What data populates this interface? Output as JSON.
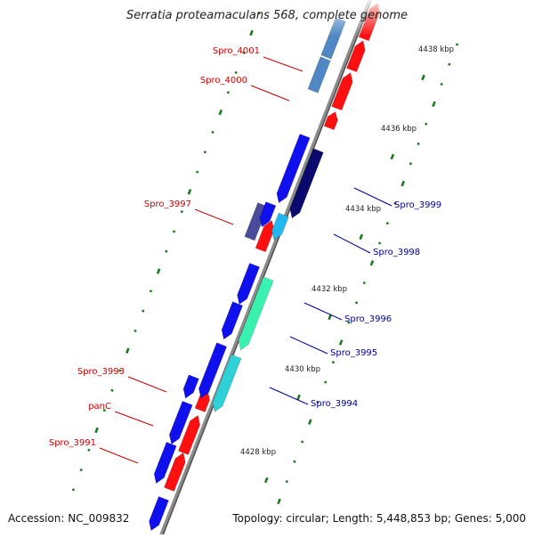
{
  "title": "Serratia proteamaculans 568, complete genome",
  "footer": {
    "accession": "Accession: NC_009832",
    "summary": "Topology: circular; Length: 5,448,853 bp; Genes: 5,000"
  },
  "colors": {
    "backbone": "#8c8c8c",
    "tick": "#1b7a1b",
    "reverse_label": "#cc0000",
    "forward_label": "#000099"
  },
  "ticks": [
    {
      "kbp": 4428,
      "label": "4428 kbp"
    },
    {
      "kbp": 4430,
      "label": "4430 kbp"
    },
    {
      "kbp": 4432,
      "label": "4432 kbp"
    },
    {
      "kbp": 4434,
      "label": "4434 kbp"
    },
    {
      "kbp": 4436,
      "label": "4436 kbp"
    },
    {
      "kbp": 4438,
      "label": "4438 kbp"
    }
  ],
  "labels": [
    {
      "text": "Spro_4001",
      "side": "left",
      "color": "#cc0000"
    },
    {
      "text": "Spro_4000",
      "side": "left",
      "color": "#cc0000"
    },
    {
      "text": "Spro_3997",
      "side": "left",
      "color": "#cc0000"
    },
    {
      "text": "Spro_3993",
      "side": "left",
      "color": "#cc0000"
    },
    {
      "text": "panC",
      "side": "left",
      "color": "#cc0000"
    },
    {
      "text": "Spro_3991",
      "side": "left",
      "color": "#cc0000"
    },
    {
      "text": "Spro_3999",
      "side": "right",
      "color": "#000099"
    },
    {
      "text": "Spro_3998",
      "side": "right",
      "color": "#000099"
    },
    {
      "text": "Spro_3996",
      "side": "right",
      "color": "#000099"
    },
    {
      "text": "Spro_3995",
      "side": "right",
      "color": "#000099"
    },
    {
      "text": "Spro_3994",
      "side": "right",
      "color": "#000099"
    }
  ]
}
